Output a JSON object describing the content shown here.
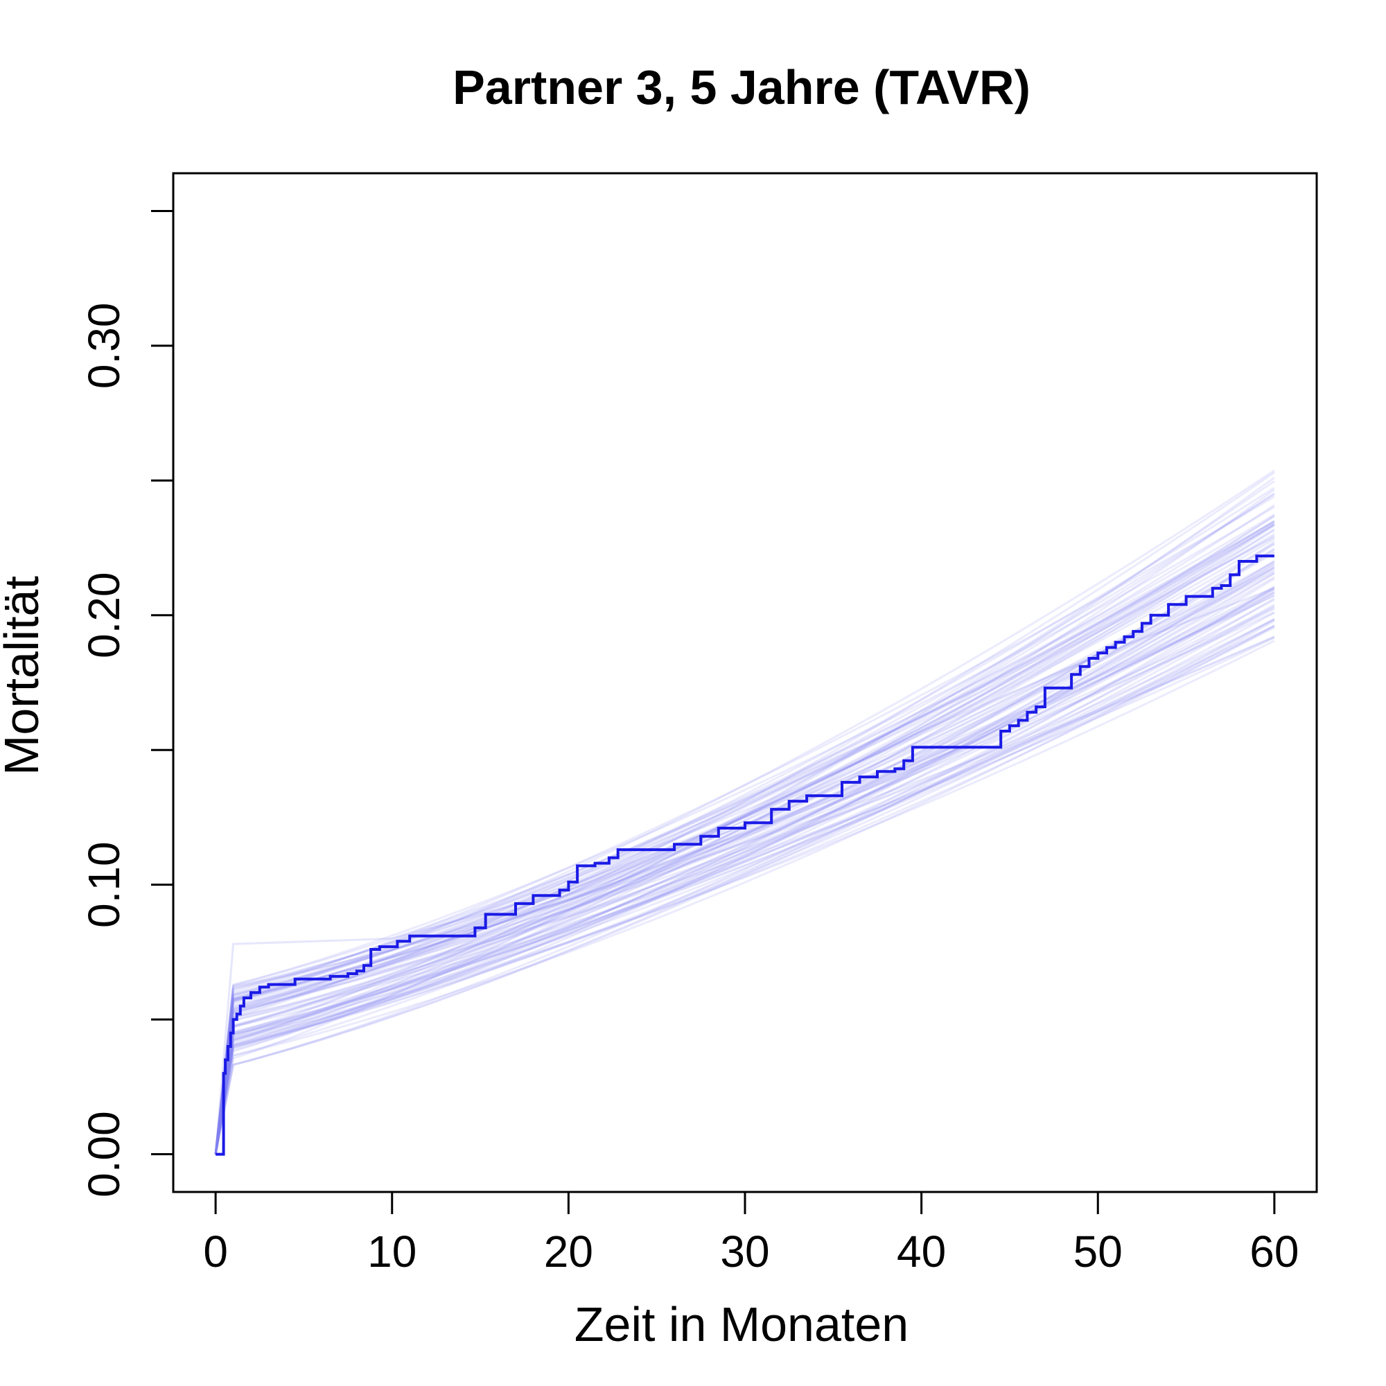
{
  "chart_data": {
    "type": "line",
    "title": "Partner 3, 5 Jahre (TAVR)",
    "xlabel": "Zeit in Monaten",
    "ylabel": "Mortalität",
    "xlim": [
      -2.4,
      62.4
    ],
    "ylim": [
      -0.014,
      0.364
    ],
    "x_ticks": [
      0,
      10,
      20,
      30,
      40,
      50,
      60
    ],
    "x_tick_labels": [
      "0",
      "10",
      "20",
      "30",
      "40",
      "50",
      "60"
    ],
    "y_ticks": [
      0.0,
      0.05,
      0.1,
      0.15,
      0.2,
      0.25,
      0.3,
      0.35
    ],
    "y_tick_labels": [
      "0.00",
      "",
      "0.10",
      "",
      "0.20",
      "",
      "0.30",
      ""
    ],
    "grid": false,
    "legend": "none",
    "colors": {
      "observed": "#1a1ae6",
      "simulated": "#8080f0"
    },
    "series": [
      {
        "type": "step",
        "x": [
          0,
          0.35,
          0.45,
          0.55,
          0.7,
          0.85,
          1.0,
          1.2,
          1.4,
          1.6,
          2.0,
          2.5,
          3.0,
          4.5,
          5.5,
          6.5,
          7.5,
          8.0,
          8.4,
          8.8,
          9.3,
          10.3,
          11.0,
          14.7,
          15.3,
          17.0,
          18.0,
          19.5,
          20.0,
          20.5,
          21.5,
          22.3,
          22.8,
          25.5,
          26.0,
          27.5,
          28.5,
          30.0,
          31.5,
          32.5,
          33.5,
          35.5,
          36.5,
          37.5,
          38.5,
          39.0,
          39.5,
          44.5,
          45.0,
          45.5,
          46.0,
          46.5,
          47.0,
          48.5,
          49.0,
          49.5,
          50.0,
          50.5,
          51.0,
          51.5,
          52.0,
          52.5,
          53.0,
          54.0,
          55.0,
          56.5,
          57.0,
          57.5,
          58.0,
          59.0,
          60.0
        ],
        "y": [
          0,
          0,
          0.03,
          0.035,
          0.04,
          0.045,
          0.05,
          0.052,
          0.055,
          0.058,
          0.06,
          0.062,
          0.063,
          0.065,
          0.065,
          0.066,
          0.067,
          0.068,
          0.07,
          0.076,
          0.077,
          0.079,
          0.081,
          0.084,
          0.089,
          0.093,
          0.096,
          0.098,
          0.101,
          0.107,
          0.108,
          0.11,
          0.113,
          0.113,
          0.115,
          0.118,
          0.121,
          0.123,
          0.128,
          0.131,
          0.133,
          0.138,
          0.14,
          0.142,
          0.143,
          0.146,
          0.151,
          0.157,
          0.159,
          0.161,
          0.164,
          0.166,
          0.173,
          0.178,
          0.181,
          0.184,
          0.186,
          0.188,
          0.19,
          0.192,
          0.194,
          0.197,
          0.2,
          0.204,
          0.207,
          0.21,
          0.211,
          0.215,
          0.22,
          0.222,
          0.222
        ]
      }
    ]
  }
}
